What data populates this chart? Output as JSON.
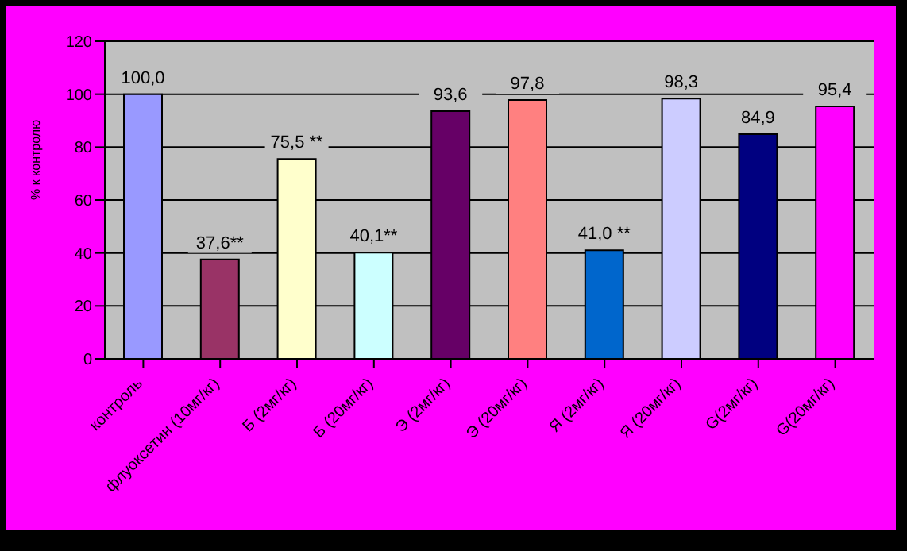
{
  "chart_data": {
    "type": "bar",
    "ylabel": "% к контролю",
    "categories": [
      "контроль",
      "флуоксетин (10мг/кг)",
      "Б (2мг/кг)",
      "Б (20мг/кг)",
      "Э (2мг/кг)",
      "Э (20мг/кг)",
      "Я (2мг/кг)",
      "Я (20мг/кг)",
      "G(2мг/кг)",
      "G(20мг/кг)"
    ],
    "values": [
      100.0,
      37.6,
      75.5,
      40.1,
      93.6,
      97.8,
      41.0,
      98.3,
      84.9,
      95.4
    ],
    "colors": [
      "#9999ff",
      "#993366",
      "#ffffcc",
      "#ccffff",
      "#660066",
      "#ff8080",
      "#0066cc",
      "#ccccff",
      "#000080",
      "#ff00ff"
    ],
    "value_labels": [
      "100,0",
      "37,6**",
      "75,5 **",
      "40,1**",
      "93,6",
      "97,8",
      "41,0 **",
      "98,3",
      "84,9",
      "95,4"
    ],
    "ylim": [
      0,
      120
    ],
    "yticks": [
      0,
      20,
      40,
      60,
      80,
      100,
      120
    ],
    "grid": "y",
    "legend": false
  }
}
